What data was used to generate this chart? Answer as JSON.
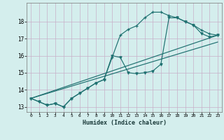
{
  "xlabel": "Humidex (Indice chaleur)",
  "background_color": "#d4eeed",
  "grid_color": "#c8afc8",
  "line_color": "#1e7070",
  "xlim": [
    -0.5,
    23.5
  ],
  "ylim": [
    12.7,
    19.1
  ],
  "yticks": [
    13,
    14,
    15,
    16,
    17,
    18
  ],
  "xticks": [
    0,
    1,
    2,
    3,
    4,
    5,
    6,
    7,
    8,
    9,
    10,
    11,
    12,
    13,
    14,
    15,
    16,
    17,
    18,
    19,
    20,
    21,
    22,
    23
  ],
  "line1_x": [
    0,
    1,
    2,
    3,
    4,
    5,
    6,
    7,
    8,
    9,
    10,
    11,
    12,
    13,
    14,
    15,
    16,
    17,
    18,
    19,
    20,
    21,
    22,
    23
  ],
  "line1_y": [
    13.5,
    13.3,
    13.1,
    13.2,
    13.0,
    13.5,
    13.8,
    14.1,
    14.4,
    14.6,
    15.9,
    17.2,
    17.55,
    17.75,
    18.22,
    18.55,
    18.55,
    18.35,
    18.22,
    18.0,
    17.8,
    17.5,
    17.28,
    17.2
  ],
  "line2_x": [
    0,
    1,
    2,
    3,
    4,
    5,
    6,
    7,
    8,
    9,
    10,
    11,
    12,
    13,
    14,
    15,
    16,
    17,
    18,
    19,
    20,
    21,
    22,
    23
  ],
  "line2_y": [
    13.5,
    13.3,
    13.1,
    13.2,
    13.0,
    13.5,
    13.8,
    14.1,
    14.4,
    14.6,
    16.0,
    15.9,
    15.0,
    14.95,
    15.0,
    15.1,
    15.5,
    18.22,
    18.22,
    18.0,
    17.8,
    17.3,
    17.1,
    17.2
  ],
  "line3_x": [
    0,
    23
  ],
  "line3_y": [
    13.5,
    17.2
  ],
  "line4_x": [
    0,
    23
  ],
  "line4_y": [
    13.5,
    16.8
  ]
}
